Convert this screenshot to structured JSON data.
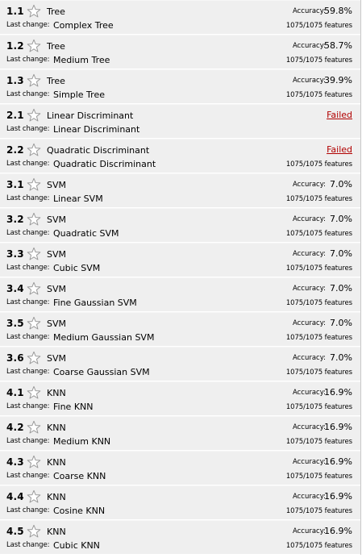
{
  "labels": {
    "last_change": "Last change:",
    "accuracy": "Accuracy:"
  },
  "colors": {
    "row_bg": "#efefef",
    "failed": "#b10000",
    "star_outline": "#9a9a9a"
  },
  "models": [
    {
      "id": "1.1",
      "type": "Tree",
      "preset": "Complex Tree",
      "accuracy": "59.8%",
      "failed": null,
      "features": "1075/1075 features"
    },
    {
      "id": "1.2",
      "type": "Tree",
      "preset": "Medium Tree",
      "accuracy": "58.7%",
      "failed": null,
      "features": "1075/1075 features"
    },
    {
      "id": "1.3",
      "type": "Tree",
      "preset": "Simple Tree",
      "accuracy": "39.9%",
      "failed": null,
      "features": "1075/1075 features"
    },
    {
      "id": "2.1",
      "type": "Linear Discriminant",
      "preset": "Linear Discriminant",
      "accuracy": null,
      "failed": "Failed",
      "features": null
    },
    {
      "id": "2.2",
      "type": "Quadratic Discriminant",
      "preset": "Quadratic Discriminant",
      "accuracy": null,
      "failed": "Failed",
      "features": "1075/1075 features"
    },
    {
      "id": "3.1",
      "type": "SVM",
      "preset": "Linear SVM",
      "accuracy": "7.0%",
      "failed": null,
      "features": "1075/1075 features"
    },
    {
      "id": "3.2",
      "type": "SVM",
      "preset": "Quadratic SVM",
      "accuracy": "7.0%",
      "failed": null,
      "features": "1075/1075 features"
    },
    {
      "id": "3.3",
      "type": "SVM",
      "preset": "Cubic SVM",
      "accuracy": "7.0%",
      "failed": null,
      "features": "1075/1075 features"
    },
    {
      "id": "3.4",
      "type": "SVM",
      "preset": "Fine Gaussian SVM",
      "accuracy": "7.0%",
      "failed": null,
      "features": "1075/1075 features"
    },
    {
      "id": "3.5",
      "type": "SVM",
      "preset": "Medium Gaussian SVM",
      "accuracy": "7.0%",
      "failed": null,
      "features": "1075/1075 features"
    },
    {
      "id": "3.6",
      "type": "SVM",
      "preset": "Coarse Gaussian SVM",
      "accuracy": "7.0%",
      "failed": null,
      "features": "1075/1075 features"
    },
    {
      "id": "4.1",
      "type": "KNN",
      "preset": "Fine KNN",
      "accuracy": "16.9%",
      "failed": null,
      "features": "1075/1075 features"
    },
    {
      "id": "4.2",
      "type": "KNN",
      "preset": "Medium KNN",
      "accuracy": "16.9%",
      "failed": null,
      "features": "1075/1075 features"
    },
    {
      "id": "4.3",
      "type": "KNN",
      "preset": "Coarse KNN",
      "accuracy": "16.9%",
      "failed": null,
      "features": "1075/1075 features"
    },
    {
      "id": "4.4",
      "type": "KNN",
      "preset": "Cosine KNN",
      "accuracy": "16.9%",
      "failed": null,
      "features": "1075/1075 features"
    },
    {
      "id": "4.5",
      "type": "KNN",
      "preset": "Cubic KNN",
      "accuracy": "16.9%",
      "failed": null,
      "features": "1075/1075 features"
    }
  ]
}
